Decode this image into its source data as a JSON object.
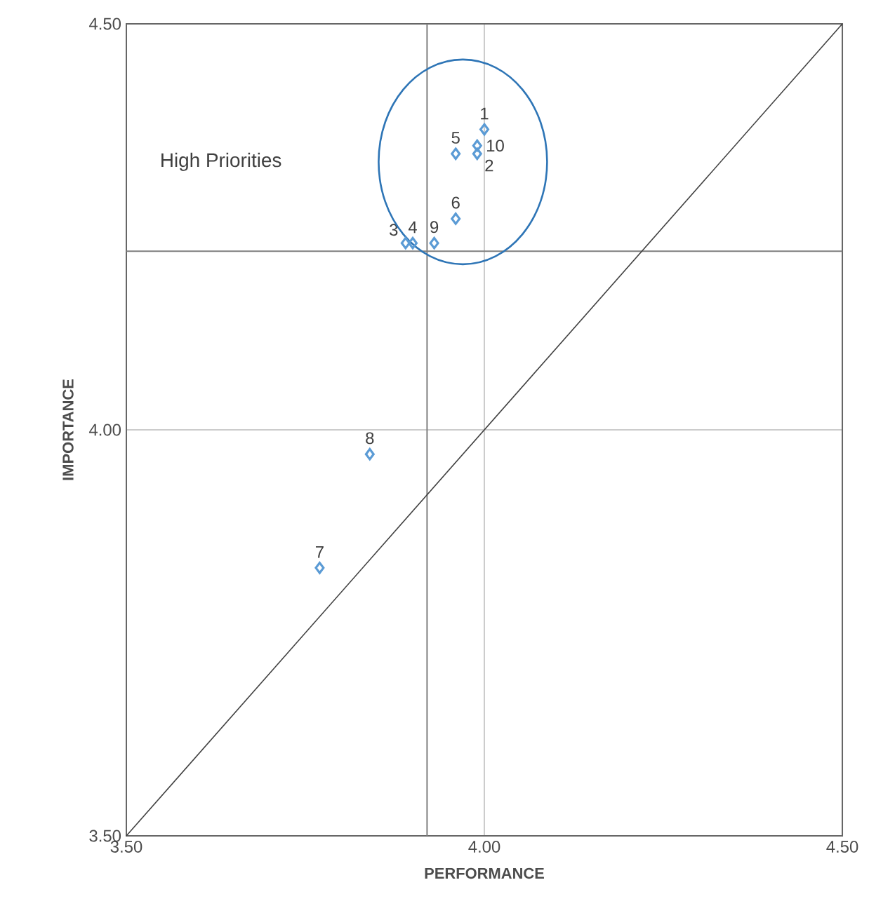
{
  "chart_data": {
    "type": "scatter",
    "xlabel": "PERFORMANCE",
    "ylabel": "IMPORTANCE",
    "xlim": [
      3.5,
      4.5
    ],
    "ylim": [
      3.5,
      4.5
    ],
    "xticks": [
      {
        "value": 3.5,
        "label": "3.50"
      },
      {
        "value": 4.0,
        "label": "4.00"
      },
      {
        "value": 4.5,
        "label": "4.50"
      }
    ],
    "yticks": [
      {
        "value": 3.5,
        "label": "3.50"
      },
      {
        "value": 4.0,
        "label": "4.00"
      },
      {
        "value": 4.5,
        "label": "4.50"
      }
    ],
    "grid": true,
    "marker": "diamond",
    "series": [
      {
        "type": "line",
        "color": "#404040",
        "marker": "none",
        "x": [
          3.5,
          4.5
        ],
        "values": [
          3.5,
          4.5
        ]
      },
      {
        "color": "#5b9bd5",
        "x": [
          4.0,
          3.99,
          3.89,
          3.9,
          3.96,
          3.96,
          3.77,
          3.84,
          3.93,
          3.99
        ],
        "values": [
          4.37,
          4.34,
          4.23,
          4.23,
          4.34,
          4.26,
          3.83,
          3.97,
          4.23,
          4.35
        ]
      }
    ],
    "ref_lines": [
      {
        "axis": "x",
        "value": 3.92,
        "color": "#7f7f7f"
      },
      {
        "axis": "y",
        "value": 4.22,
        "color": "#7f7f7f"
      }
    ],
    "annotations": [
      "High Priorities",
      {
        "text": "1",
        "x": 4.0,
        "y": 4.37
      },
      {
        "text": "2",
        "x": 3.99,
        "y": 4.34
      },
      {
        "text": "3",
        "x": 3.89,
        "y": 4.23
      },
      {
        "text": "4",
        "x": 3.9,
        "y": 4.23
      },
      {
        "text": "5",
        "x": 3.96,
        "y": 4.34
      },
      {
        "text": "6",
        "x": 3.96,
        "y": 4.26
      },
      {
        "text": "7",
        "x": 3.77,
        "y": 3.83
      },
      {
        "text": "8",
        "x": 3.84,
        "y": 3.97
      },
      {
        "text": "9",
        "x": 3.93,
        "y": 4.23
      },
      {
        "text": "10",
        "x": 3.99,
        "y": 4.35
      }
    ]
  }
}
